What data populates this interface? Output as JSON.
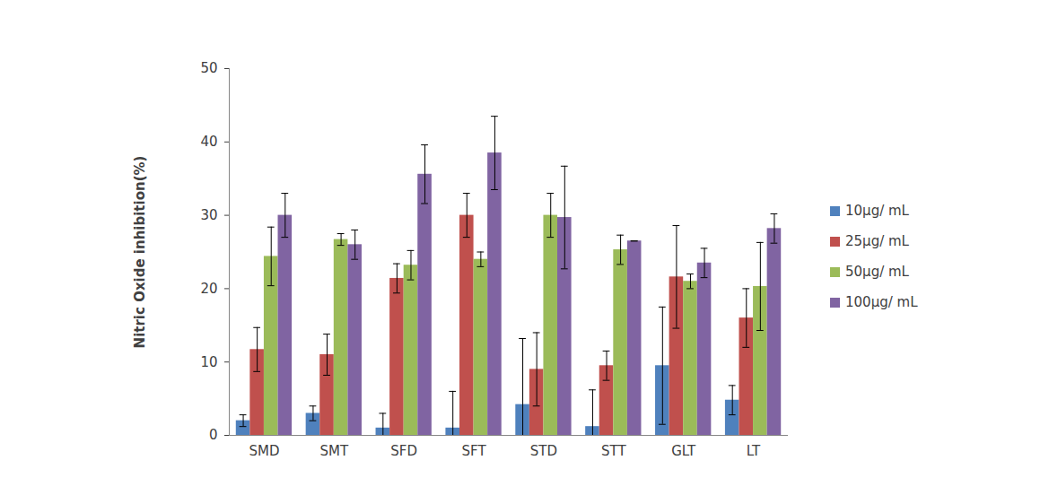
{
  "chart_data": {
    "type": "bar",
    "y_label": "Nitric Oxide inhibition(%)",
    "categories": [
      "SMD",
      "SMT",
      "SFD",
      "SFT",
      "STD",
      "STT",
      "GLT",
      "LT"
    ],
    "series": [
      {
        "name": "10μg/ mL",
        "color": "#4f81bd",
        "values": [
          2,
          3,
          1,
          1,
          4.2,
          1.2,
          9.5,
          4.8
        ],
        "errors": [
          0.8,
          1,
          2,
          5,
          9,
          5,
          8,
          2
        ]
      },
      {
        "name": "25μg/ mL",
        "color": "#c0504d",
        "values": [
          11.7,
          11,
          21.4,
          30,
          9,
          9.5,
          21.6,
          16
        ],
        "errors": [
          3,
          2.8,
          2,
          3,
          5,
          2,
          7,
          4
        ]
      },
      {
        "name": "50μg/ mL",
        "color": "#9bbb59",
        "values": [
          24.4,
          26.7,
          23.2,
          24,
          30,
          25.3,
          21,
          20.3
        ],
        "errors": [
          4,
          0.8,
          2,
          1,
          3,
          2,
          1,
          6
        ]
      },
      {
        "name": "100μg/ mL",
        "color": "#8064a2",
        "values": [
          30,
          26,
          35.6,
          38.5,
          29.7,
          26.5,
          23.5,
          28.2
        ],
        "errors": [
          3,
          2,
          4,
          5,
          7,
          0,
          2,
          2
        ]
      }
    ],
    "ylim": [
      0,
      50
    ],
    "yticks": [
      0,
      10,
      20,
      30,
      40,
      50
    ],
    "grid": false,
    "legend": "right"
  }
}
